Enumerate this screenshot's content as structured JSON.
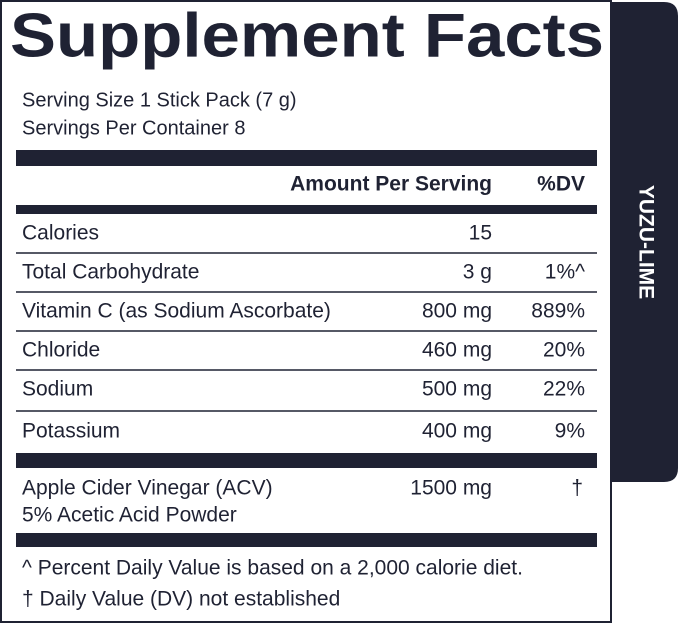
{
  "header": {
    "title": "Supplement Facts"
  },
  "serving": {
    "size": "Serving Size 1 Stick Pack (7 g)",
    "servings_per_container": "Servings Per Container 8"
  },
  "table": {
    "headers": [
      "Amount Per Serving",
      "%DV"
    ],
    "rows": [
      [
        "Calories",
        "15"
      ],
      [
        "Total Carbohydrate",
        "3 g",
        "1%^"
      ],
      [
        "Vitamin C (as Sodium Ascorbate)",
        "800 mg",
        "889%"
      ],
      [
        "Chloride",
        "460 mg",
        "20%"
      ],
      [
        "Sodium",
        "500 mg",
        "22%"
      ],
      [
        "Potassium",
        "400 mg",
        "9%"
      ]
    ],
    "other": {
      "name": [
        "Apple Cider Vinegar (ACV)",
        "5% Acetic Acid Powder"
      ],
      "amount": "1500 mg",
      "dv": "†"
    }
  },
  "footnotes": [
    "^ Percent Daily Value is based on a 2,000 calorie diet.",
    "† Daily Value (DV) not established"
  ],
  "flavor": "YUZU-LIME"
}
